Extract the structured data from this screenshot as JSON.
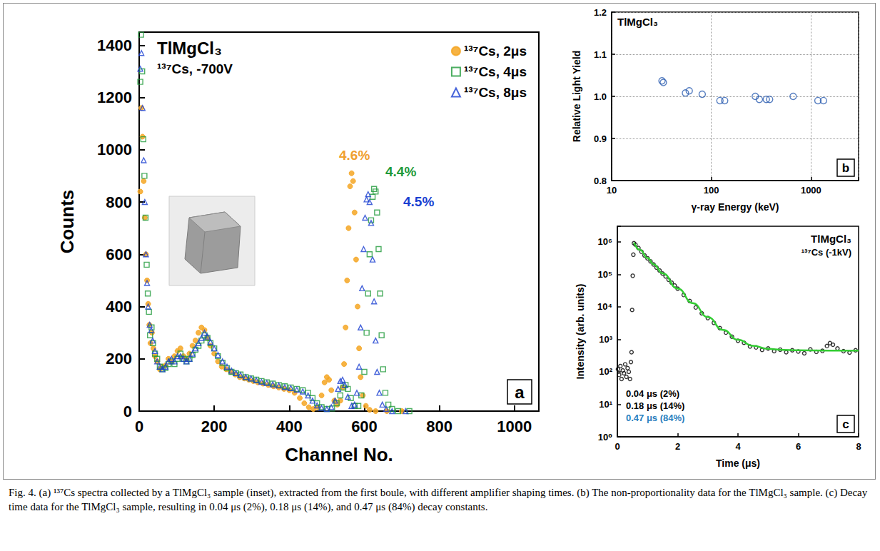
{
  "caption": "Fig. 4. (a) ¹³⁷Cs spectra collected by a TlMgCl₃ sample (inset), extracted from the first boule, with different amplifier shaping times. (b) The non-proportionality data for the TlMgCl₃ sample. (c) Decay time data for the TlMgCl₃ sample, resulting in 0.04 μs (2%), 0.18 μs (14%), and 0.47 μs (84%) decay constants.",
  "chart_data": [
    {
      "panel": "a",
      "type": "scatter",
      "title": "TlMgCl₃",
      "subtitle": "¹³⁷Cs, -700V",
      "x_label": "Channel No.",
      "y_label": "Counts",
      "xlim": [
        0,
        1065
      ],
      "xticks": [
        0,
        200,
        400,
        600,
        800,
        1000
      ],
      "ylim": [
        0,
        1450
      ],
      "yticks": [
        0,
        200,
        400,
        600,
        800,
        1000,
        1200,
        1400
      ],
      "grid": false,
      "legend": "top-right",
      "annotations": [
        {
          "text": "4.6%",
          "color": "#f0a030"
        },
        {
          "text": "4.4%",
          "color": "#1f9a3a"
        },
        {
          "text": "4.5%",
          "color": "#1a3fd1"
        }
      ],
      "series": [
        {
          "name": "¹³⁷Cs, 2μs",
          "color": "#f5a623",
          "marker": "circle",
          "x": [
            3,
            6,
            9,
            12,
            15,
            18,
            21,
            24,
            27,
            30,
            34,
            38,
            42,
            48,
            55,
            62,
            70,
            78,
            86,
            94,
            102,
            110,
            118,
            126,
            134,
            142,
            150,
            158,
            166,
            174,
            182,
            190,
            200,
            210,
            220,
            232,
            244,
            256,
            268,
            280,
            292,
            304,
            316,
            330,
            344,
            358,
            372,
            386,
            400,
            414,
            428,
            440,
            452,
            464,
            476,
            486,
            494,
            500,
            506,
            512,
            520,
            528,
            536,
            542,
            546,
            550,
            554,
            558,
            562,
            566,
            570,
            574,
            578,
            582,
            586,
            590,
            596,
            604,
            614,
            630,
            660,
            700
          ],
          "values": [
            840,
            1160,
            1050,
            880,
            740,
            600,
            500,
            410,
            330,
            260,
            300,
            240,
            210,
            190,
            160,
            170,
            175,
            200,
            190,
            210,
            230,
            240,
            210,
            200,
            220,
            250,
            270,
            300,
            320,
            310,
            280,
            250,
            220,
            190,
            170,
            160,
            150,
            140,
            130,
            125,
            120,
            115,
            110,
            105,
            100,
            95,
            90,
            85,
            80,
            70,
            50,
            30,
            15,
            8,
            15,
            60,
            110,
            130,
            120,
            80,
            40,
            25,
            40,
            90,
            180,
            320,
            500,
            700,
            860,
            910,
            880,
            760,
            580,
            400,
            240,
            130,
            60,
            20,
            5,
            0,
            0,
            0
          ]
        },
        {
          "name": "¹³⁷Cs, 4μs",
          "color": "#1f9a3a",
          "marker": "square-open",
          "x": [
            3,
            5,
            8,
            11,
            14,
            17,
            20,
            23,
            26,
            29,
            33,
            37,
            42,
            48,
            55,
            62,
            70,
            78,
            86,
            94,
            102,
            110,
            118,
            126,
            134,
            142,
            150,
            158,
            166,
            174,
            182,
            190,
            200,
            210,
            222,
            234,
            246,
            258,
            270,
            284,
            298,
            312,
            326,
            340,
            356,
            372,
            388,
            404,
            420,
            436,
            450,
            462,
            474,
            486,
            500,
            514,
            526,
            536,
            544,
            550,
            556,
            564,
            574,
            584,
            592,
            600,
            606,
            610,
            614,
            618,
            622,
            626,
            630,
            634,
            638,
            642,
            646,
            650,
            656,
            664,
            674,
            690,
            720
          ],
          "values": [
            1260,
            1440,
            1300,
            1040,
            900,
            740,
            560,
            450,
            380,
            290,
            320,
            260,
            220,
            200,
            170,
            160,
            165,
            180,
            190,
            180,
            200,
            220,
            200,
            190,
            200,
            215,
            235,
            250,
            270,
            290,
            280,
            260,
            240,
            210,
            185,
            165,
            150,
            145,
            140,
            130,
            125,
            120,
            115,
            110,
            105,
            100,
            95,
            90,
            85,
            80,
            70,
            50,
            30,
            15,
            8,
            10,
            30,
            60,
            90,
            100,
            85,
            50,
            20,
            20,
            60,
            150,
            300,
            450,
            600,
            730,
            820,
            850,
            840,
            760,
            620,
            450,
            290,
            160,
            70,
            25,
            8,
            0,
            0
          ]
        },
        {
          "name": "¹³⁷Cs, 8μs",
          "color": "#1a3fd1",
          "marker": "triangle-open",
          "x": [
            3,
            6,
            9,
            12,
            15,
            18,
            21,
            24,
            28,
            32,
            36,
            42,
            48,
            55,
            62,
            70,
            78,
            86,
            94,
            102,
            110,
            118,
            126,
            134,
            142,
            150,
            158,
            166,
            174,
            182,
            190,
            200,
            210,
            222,
            234,
            246,
            258,
            270,
            284,
            298,
            312,
            326,
            340,
            356,
            372,
            388,
            404,
            420,
            436,
            450,
            462,
            474,
            486,
            500,
            512,
            522,
            530,
            536,
            542,
            548,
            556,
            566,
            574,
            580,
            586,
            590,
            594,
            598,
            602,
            606,
            610,
            614,
            618,
            622,
            626,
            630,
            634,
            640,
            648,
            658,
            674,
            710
          ],
          "values": [
            1310,
            1370,
            1160,
            960,
            800,
            600,
            490,
            400,
            330,
            310,
            270,
            230,
            190,
            170,
            160,
            170,
            190,
            200,
            190,
            210,
            210,
            200,
            190,
            200,
            220,
            240,
            260,
            280,
            300,
            285,
            265,
            240,
            215,
            190,
            170,
            155,
            145,
            138,
            130,
            125,
            118,
            112,
            108,
            102,
            98,
            92,
            88,
            82,
            75,
            60,
            40,
            22,
            12,
            8,
            15,
            40,
            85,
            115,
            120,
            100,
            55,
            20,
            25,
            70,
            170,
            320,
            470,
            620,
            740,
            810,
            830,
            800,
            720,
            580,
            420,
            270,
            150,
            70,
            25,
            8,
            0,
            0
          ]
        }
      ]
    },
    {
      "panel": "b",
      "type": "scatter",
      "title": "TlMgCl₃",
      "x_label": "γ-ray Energy (keV)",
      "y_label": "Relative Light Yield",
      "log": "x",
      "xlim": [
        10,
        3000
      ],
      "xticks": [
        10,
        100,
        1000
      ],
      "ylim": [
        0.8,
        1.2
      ],
      "yticks": [
        0.8,
        0.9,
        {
          "value": 1,
          "label": "1.0"
        },
        1.1,
        1.2
      ],
      "grid": true,
      "series": [
        {
          "color": "#2a5db0",
          "marker": "circle-open",
          "x": [
            32,
            33,
            55,
            60,
            81,
            122,
            136,
            276,
            303,
            356,
            384,
            662,
            1173,
            1333
          ],
          "values": [
            1.037,
            1.033,
            1.008,
            1.013,
            1.005,
            0.99,
            0.99,
            1.0,
            0.993,
            0.993,
            0.993,
            1.0,
            0.99,
            0.99
          ]
        }
      ]
    },
    {
      "panel": "c",
      "type": "scatter",
      "title": "TlMgCl₃",
      "subtitle": "¹³⁷Cs (-1kV)",
      "x_label": "Time (μs)",
      "y_label": "Intensity (arb. units)",
      "log": "y",
      "xlim": [
        0,
        8
      ],
      "xticks": [
        0,
        2,
        4,
        6,
        8
      ],
      "ylim": [
        1,
        3000000
      ],
      "yticks": [
        {
          "value": 1,
          "label": "10⁰"
        },
        {
          "value": 10,
          "label": "10¹"
        },
        {
          "value": 100,
          "label": "10²"
        },
        {
          "value": 1000,
          "label": "10³"
        },
        {
          "value": 10000,
          "label": "10⁴"
        },
        {
          "value": 100000,
          "label": "10⁵"
        },
        {
          "value": 1000000,
          "label": "10⁶"
        }
      ],
      "grid": false,
      "annotations": [
        {
          "text": "0.04 μs (2%)",
          "color": "#000000"
        },
        {
          "text": "0.18 μs (14%)",
          "color": "#000000"
        },
        {
          "text": "0.47 μs (84%)",
          "color": "#2a7fbf"
        }
      ],
      "series": [
        {
          "type": "scatter",
          "color": "#000000",
          "marker": "circle-open",
          "x": [
            0.02,
            0.06,
            0.1,
            0.14,
            0.18,
            0.22,
            0.26,
            0.3,
            0.34,
            0.38,
            0.42,
            0.45,
            0.47,
            0.49,
            0.51,
            0.53,
            0.55,
            0.6,
            0.7,
            0.8,
            0.9,
            1.0,
            1.1,
            1.2,
            1.3,
            1.4,
            1.5,
            1.6,
            1.7,
            1.8,
            1.9,
            2.0,
            2.2,
            2.4,
            2.6,
            2.8,
            3.0,
            3.2,
            3.4,
            3.6,
            3.8,
            4.0,
            4.2,
            4.4,
            4.6,
            4.8,
            5.0,
            5.2,
            5.4,
            5.6,
            5.8,
            6.0,
            6.2,
            6.4,
            6.6,
            6.8,
            6.95,
            7.05,
            7.15,
            7.3,
            7.5,
            7.7,
            7.9
          ],
          "values": [
            120,
            80,
            150,
            60,
            110,
            90,
            170,
            70,
            130,
            100,
            60,
            200,
            400,
            8000,
            90000,
            400000,
            900000,
            820000,
            640000,
            490000,
            380000,
            310000,
            250000,
            200000,
            160000,
            130000,
            105000,
            86000,
            68000,
            55000,
            45000,
            36000,
            23000,
            15000,
            9500,
            6300,
            4500,
            3200,
            2200,
            1600,
            1200,
            900,
            780,
            600,
            560,
            470,
            520,
            430,
            480,
            400,
            460,
            420,
            370,
            490,
            410,
            440,
            620,
            760,
            680,
            520,
            430,
            390,
            460
          ]
        },
        {
          "type": "line",
          "color": "#33cc33",
          "line_style": "solid",
          "x": [
            0.55,
            0.75,
            1.0,
            1.2,
            1.5,
            2.0,
            2.5,
            3.0,
            3.5,
            4.0,
            4.5,
            5.0,
            5.5,
            6.0,
            7.0,
            8.0
          ],
          "values": [
            950000,
            565000,
            318000,
            204000,
            107000,
            36500,
            13000,
            4800,
            1950,
            965,
            630,
            510,
            470,
            457,
            450,
            450
          ]
        }
      ]
    }
  ]
}
